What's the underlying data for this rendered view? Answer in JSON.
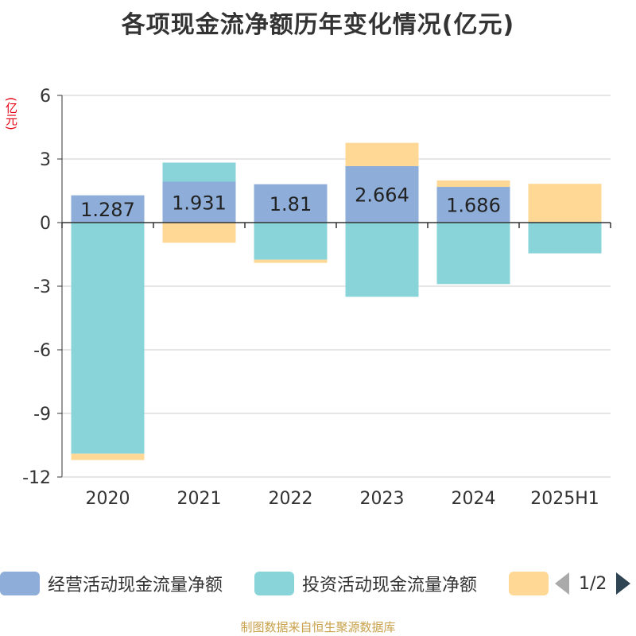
{
  "title": "各项现金流净额历年变化情况(亿元)",
  "unit_label": "(亿元)",
  "source": "制图数据来自恒生聚源数据库",
  "legend": {
    "pager_text": "1/2"
  },
  "colors": {
    "operating": "#8eaed9",
    "investing": "#88d4d8",
    "financing": "#ffd896",
    "grid": "#cccccc",
    "axis": "#333333"
  },
  "chart_data": {
    "type": "bar",
    "stacked": true,
    "categories": [
      "2020",
      "2021",
      "2022",
      "2023",
      "2024",
      "2025H1"
    ],
    "ylim": [
      -12,
      6
    ],
    "yticks": [
      6,
      3,
      0,
      -3,
      -6,
      -9,
      -12
    ],
    "grid": true,
    "legend_position": "bottom",
    "series": [
      {
        "name": "经营活动现金流量净额",
        "color_key": "operating",
        "values": [
          1.287,
          1.931,
          1.81,
          2.664,
          1.686,
          0.03
        ],
        "data_labels": [
          "1.287",
          "1.931",
          "1.81",
          "2.664",
          "1.686",
          ""
        ]
      },
      {
        "name": "投资活动现金流量净额",
        "color_key": "investing",
        "values": [
          -10.9,
          0.9,
          -1.75,
          -3.5,
          -2.9,
          -1.45
        ]
      },
      {
        "name": "",
        "color_key": "financing",
        "values": [
          -0.3,
          -0.95,
          -0.15,
          1.1,
          0.3,
          1.8
        ]
      }
    ]
  }
}
